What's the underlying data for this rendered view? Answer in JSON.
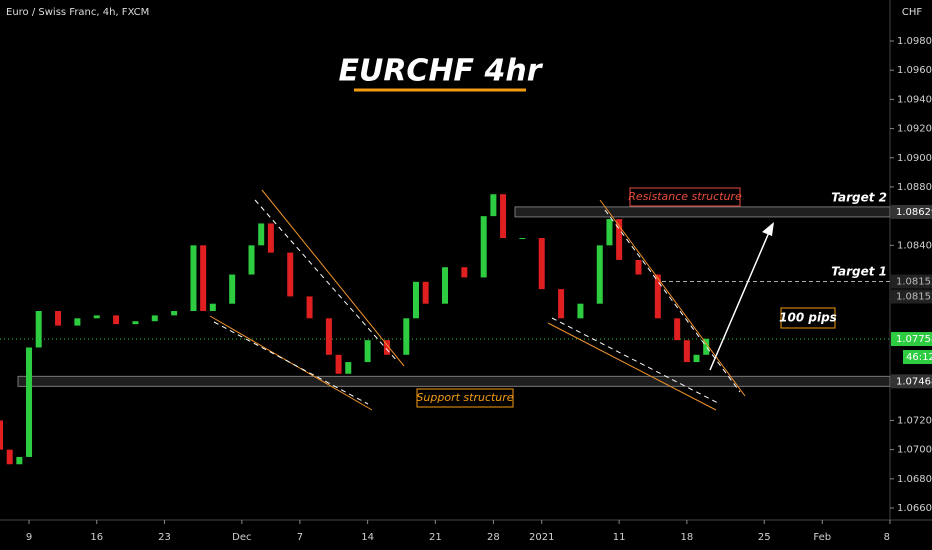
{
  "header": "Euro / Swiss Franc, 4h, FXCM",
  "currency": "CHF",
  "countdown": "46:12",
  "chart_data": {
    "type": "candlestick",
    "title": "EURCHF 4hr",
    "x": [
      -3,
      -2,
      -1,
      0,
      1,
      3,
      5,
      7,
      9,
      11,
      13,
      15,
      17,
      18,
      19,
      21,
      23,
      24,
      25,
      27,
      29,
      31,
      32,
      33,
      35,
      37,
      39,
      40,
      41,
      43,
      45,
      47,
      48,
      49,
      51,
      53,
      55,
      57,
      59,
      60,
      61,
      63,
      65,
      67,
      68,
      69,
      70
    ],
    "open": [
      1.072,
      1.07,
      1.069,
      1.0695,
      1.077,
      1.0795,
      1.0785,
      1.079,
      1.0792,
      1.0786,
      1.0788,
      1.0792,
      1.0795,
      1.084,
      1.0795,
      1.08,
      1.082,
      1.084,
      1.0855,
      1.0835,
      1.0805,
      1.079,
      1.0765,
      1.0752,
      1.076,
      1.0775,
      1.0765,
      1.079,
      1.0815,
      1.08,
      1.0825,
      1.0818,
      1.086,
      1.0875,
      1.0845,
      1.0845,
      1.081,
      1.079,
      1.08,
      1.084,
      1.0858,
      1.083,
      1.082,
      1.079,
      1.0775,
      1.076,
      1.0765
    ],
    "close": [
      1.07,
      1.069,
      1.0695,
      1.077,
      1.0795,
      1.0785,
      1.079,
      1.0792,
      1.0786,
      1.0788,
      1.0792,
      1.0795,
      1.084,
      1.0795,
      1.08,
      1.082,
      1.084,
      1.0855,
      1.0835,
      1.0805,
      1.079,
      1.0765,
      1.0752,
      1.076,
      1.0775,
      1.0765,
      1.079,
      1.0815,
      1.08,
      1.0825,
      1.0818,
      1.086,
      1.0875,
      1.0845,
      1.0845,
      1.081,
      1.079,
      1.08,
      1.084,
      1.0858,
      1.083,
      1.082,
      1.079,
      1.0775,
      1.076,
      1.0765,
      1.0776
    ],
    "up_color": "#2ecc40",
    "down_color": "#e02020",
    "xlim": [
      -3,
      89
    ],
    "ylim": [
      1.06518,
      1.10081
    ],
    "xticks": [
      {
        "value": 0,
        "label": "9"
      },
      {
        "value": 7,
        "label": "16"
      },
      {
        "value": 14,
        "label": "23"
      },
      {
        "value": 22,
        "label": "Dec"
      },
      {
        "value": 28,
        "label": "7"
      },
      {
        "value": 35,
        "label": "14"
      },
      {
        "value": 42,
        "label": "21"
      },
      {
        "value": 48,
        "label": "28"
      },
      {
        "value": 53,
        "label": "2021"
      },
      {
        "value": 61,
        "label": "11"
      },
      {
        "value": 68,
        "label": "18"
      },
      {
        "value": 76,
        "label": "25"
      },
      {
        "value": 82,
        "label": "Feb"
      },
      {
        "value": 89,
        "label": "8"
      }
    ],
    "yticks": [
      {
        "value": 1.066,
        "label": "1.06600"
      },
      {
        "value": 1.068,
        "label": "1.06800"
      },
      {
        "value": 1.07,
        "label": "1.07000"
      },
      {
        "value": 1.072,
        "label": "1.07200"
      },
      {
        "value": 1.084,
        "label": "1.08400"
      },
      {
        "value": 1.088,
        "label": "1.08800"
      },
      {
        "value": 1.09,
        "label": "1.09000"
      },
      {
        "value": 1.092,
        "label": "1.09200"
      },
      {
        "value": 1.094,
        "label": "1.09400"
      },
      {
        "value": 1.096,
        "label": "1.09600"
      },
      {
        "value": 1.098,
        "label": "1.09800"
      }
    ],
    "levels": {
      "target_2": 1.08629,
      "target_1": 1.08152,
      "current": 1.07758,
      "support": 1.07468
    },
    "annotations": {
      "resistance": "Resistance structure",
      "support": "Support structure",
      "target_2": "Target 2",
      "target_1": "Target 1",
      "pips": "100 pips"
    }
  }
}
